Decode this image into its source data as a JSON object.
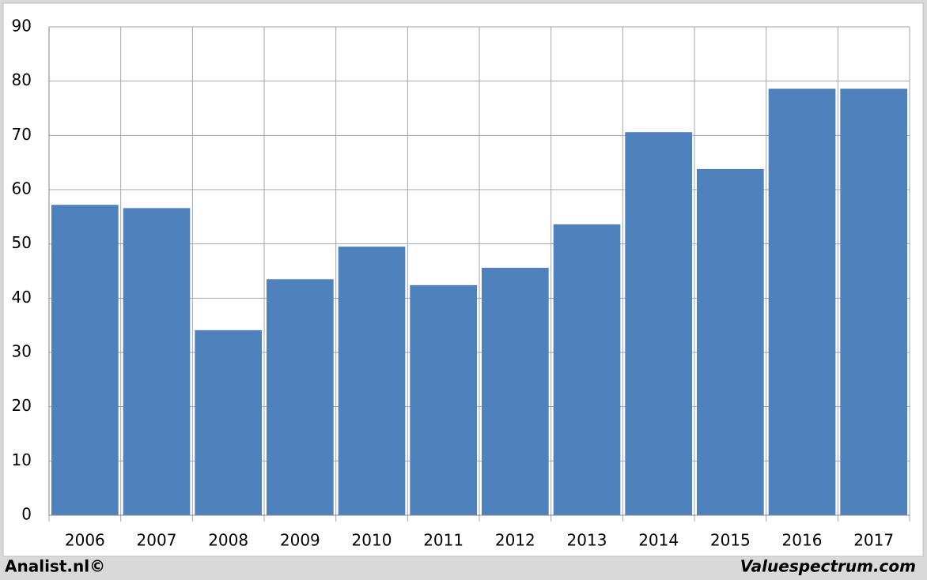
{
  "chart_data": {
    "type": "bar",
    "categories": [
      "2006",
      "2007",
      "2008",
      "2009",
      "2010",
      "2011",
      "2012",
      "2013",
      "2014",
      "2015",
      "2016",
      "2017"
    ],
    "values": [
      57.2,
      56.6,
      34.1,
      43.5,
      49.5,
      42.4,
      45.6,
      53.6,
      70.6,
      63.8,
      78.6,
      78.6
    ],
    "color": "#4f81bd",
    "ylim": [
      0,
      90
    ],
    "yticks": [
      0,
      10,
      20,
      30,
      40,
      50,
      60,
      70,
      80,
      90
    ],
    "grid": true,
    "footer_left": "Analist.nl©",
    "footer_right": "Valuespectrum.com"
  }
}
